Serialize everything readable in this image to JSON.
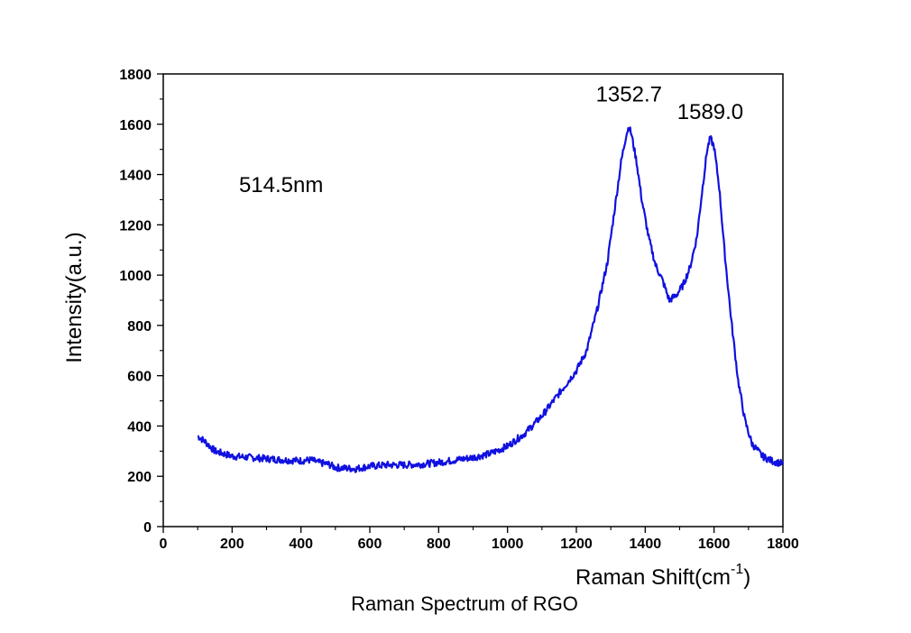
{
  "chart_data": {
    "type": "line",
    "title": "",
    "caption": "Raman Spectrum of RGO",
    "xlabel_main": "Raman Shift(cm",
    "xlabel_sup": "-1",
    "xlabel_close": ")",
    "ylabel": "Intensity(a.u.)",
    "xlim": [
      0,
      1800
    ],
    "ylim": [
      0,
      1800
    ],
    "xticks": [
      "0",
      "200",
      "400",
      "600",
      "800",
      "1000",
      "1200",
      "1400",
      "1600",
      "1800"
    ],
    "yticks": [
      "0",
      "200",
      "400",
      "600",
      "800",
      "1000",
      "1200",
      "1400",
      "1600",
      "1800"
    ],
    "grid": false,
    "line_color": "#1010e0",
    "annotations": [
      {
        "text": "514.5nm",
        "x": 220,
        "y": 1330
      },
      {
        "text": "1352.7",
        "x": 1352.7,
        "y": 1690
      },
      {
        "text": "1589.0",
        "x": 1589.0,
        "y": 1620
      }
    ],
    "series": [
      {
        "x": [
          100,
          120,
          150,
          200,
          250,
          300,
          350,
          400,
          430,
          450,
          480,
          500,
          530,
          560,
          600,
          650,
          700,
          750,
          800,
          850,
          900,
          950,
          1000,
          1050,
          1100,
          1150,
          1200,
          1230,
          1260,
          1290,
          1310,
          1330,
          1345,
          1352.7,
          1360,
          1375,
          1390,
          1410,
          1430,
          1450,
          1470,
          1490,
          1510,
          1530,
          1550,
          1565,
          1580,
          1589.0,
          1600,
          1615,
          1630,
          1650,
          1670,
          1690,
          1710,
          1740,
          1770,
          1800
        ],
        "values": [
          360,
          340,
          300,
          280,
          275,
          270,
          265,
          262,
          265,
          255,
          248,
          235,
          232,
          230,
          240,
          245,
          245,
          248,
          255,
          265,
          275,
          290,
          320,
          370,
          440,
          530,
          620,
          700,
          860,
          1050,
          1250,
          1450,
          1560,
          1590,
          1560,
          1450,
          1300,
          1150,
          1040,
          980,
          900,
          920,
          960,
          1030,
          1150,
          1330,
          1500,
          1545,
          1510,
          1350,
          1100,
          820,
          580,
          420,
          330,
          280,
          260,
          250
        ]
      }
    ]
  }
}
